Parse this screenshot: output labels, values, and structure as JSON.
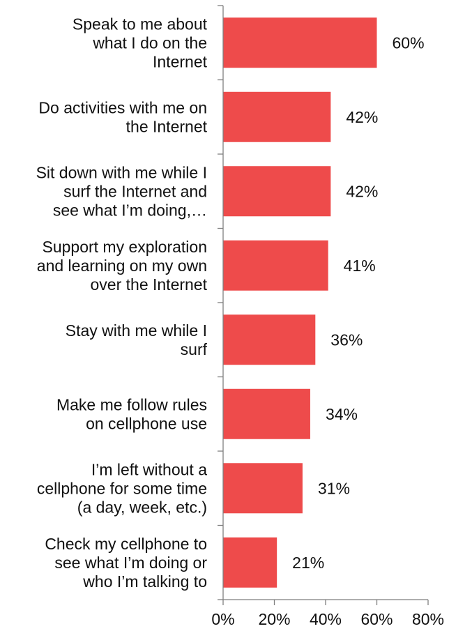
{
  "chart_data": {
    "type": "bar",
    "orientation": "horizontal",
    "categories": [
      [
        "Speak to me about",
        "what I do on the",
        "Internet"
      ],
      [
        "Do activities with me on",
        "the Internet"
      ],
      [
        "Sit down with me while I",
        "surf the Internet and",
        "see what I’m doing,…"
      ],
      [
        "Support my exploration",
        "and learning on my own",
        "over the Internet"
      ],
      [
        "Stay with me while I",
        "surf"
      ],
      [
        "Make me follow rules",
        "on cellphone use"
      ],
      [
        "I’m left without a",
        "cellphone for some time",
        "(a day, week, etc.)"
      ],
      [
        "Check my cellphone to",
        "see what I’m doing or",
        "who I’m talking to"
      ]
    ],
    "values": [
      60,
      42,
      42,
      41,
      36,
      34,
      31,
      21
    ],
    "data_labels": [
      "60%",
      "42%",
      "42%",
      "41%",
      "36%",
      "34%",
      "31%",
      "21%"
    ],
    "xlim": [
      0,
      80
    ],
    "x_ticks": [
      0,
      20,
      40,
      60,
      80
    ],
    "x_tick_labels": [
      "0%",
      "20%",
      "40%",
      "60%",
      "80%"
    ],
    "title": "",
    "xlabel": "",
    "ylabel": "",
    "grid": false,
    "legend": "none",
    "bar_color": "#ee4b4b",
    "axis_color": "#7f7f7f",
    "text_color": "#111111"
  }
}
